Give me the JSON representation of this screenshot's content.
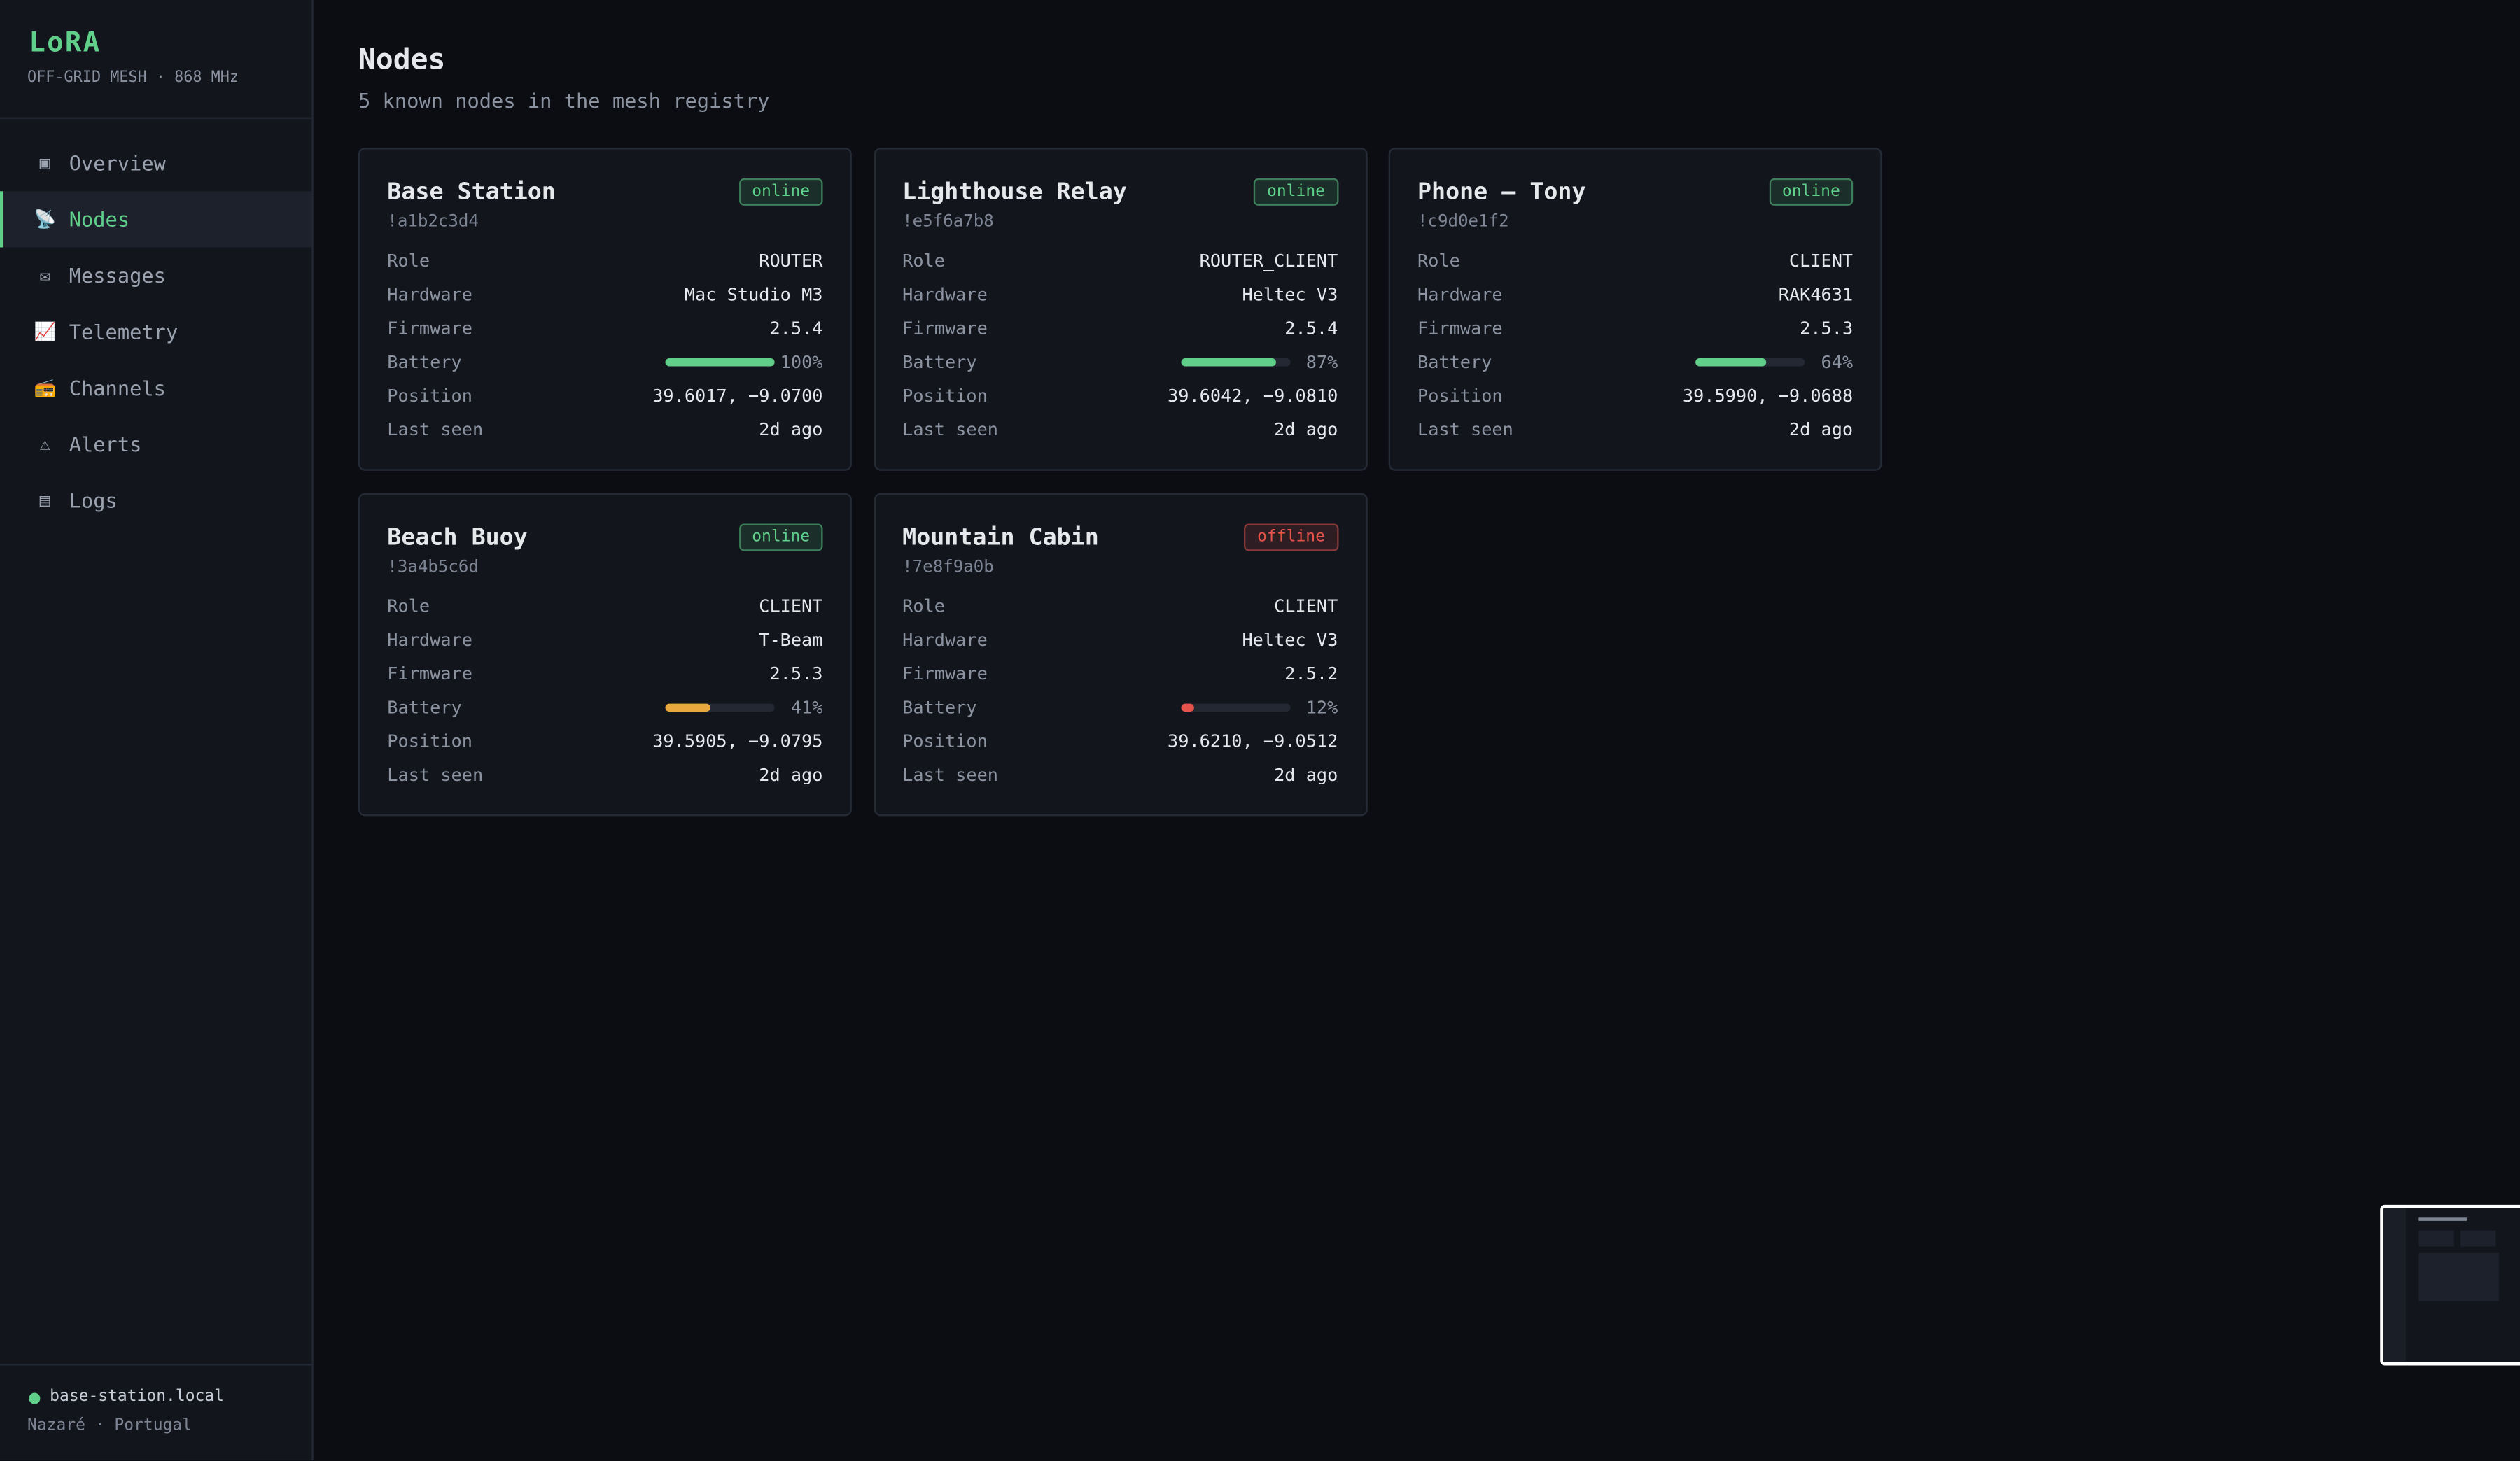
{
  "brand": {
    "title": "LoRA",
    "subtitle": "OFF-GRID MESH · 868 MHz"
  },
  "nav": [
    {
      "icon": "▣",
      "label": "Overview",
      "active": false
    },
    {
      "icon": "📡",
      "label": "Nodes",
      "active": true
    },
    {
      "icon": "✉",
      "label": "Messages",
      "active": false
    },
    {
      "icon": "📈",
      "label": "Telemetry",
      "active": false
    },
    {
      "icon": "📻",
      "label": "Channels",
      "active": false
    },
    {
      "icon": "⚠",
      "label": "Alerts",
      "active": false
    },
    {
      "icon": "▤",
      "label": "Logs",
      "active": false
    }
  ],
  "footer": {
    "host": "base-station.local",
    "location": "Nazaré · Portugal"
  },
  "header": {
    "title": "Nodes",
    "subtitle": "5 known nodes in the mesh registry"
  },
  "field_labels": [
    "Role",
    "Hardware",
    "Firmware",
    "Battery",
    "Position",
    "Last seen"
  ],
  "nodes": [
    {
      "name": "Base Station",
      "id": "!a1b2c3d4",
      "status": "online",
      "status_color": "#5fcf8a",
      "role": "ROUTER",
      "hardware": "Mac Studio M3",
      "firmware": "2.5.4",
      "battery": 100,
      "battery_label": "100%",
      "battery_color": "#5fcf8a",
      "position": "39.6017, −9.0700",
      "last_seen": "2d ago"
    },
    {
      "name": "Lighthouse Relay",
      "id": "!e5f6a7b8",
      "status": "online",
      "status_color": "#5fcf8a",
      "role": "ROUTER_CLIENT",
      "hardware": "Heltec V3",
      "firmware": "2.5.4",
      "battery": 87,
      "battery_label": "87%",
      "battery_color": "#5fcf8a",
      "position": "39.6042, −9.0810",
      "last_seen": "2d ago"
    },
    {
      "name": "Phone – Tony",
      "id": "!c9d0e1f2",
      "status": "online",
      "status_color": "#5fcf8a",
      "role": "CLIENT",
      "hardware": "RAK4631",
      "firmware": "2.5.3",
      "battery": 64,
      "battery_label": "64%",
      "battery_color": "#5fcf8a",
      "position": "39.5990, −9.0688",
      "last_seen": "2d ago"
    },
    {
      "name": "Beach Buoy",
      "id": "!3a4b5c6d",
      "status": "online",
      "status_color": "#5fcf8a",
      "role": "CLIENT",
      "hardware": "T-Beam",
      "firmware": "2.5.3",
      "battery": 41,
      "battery_label": "41%",
      "battery_color": "#e8a83e",
      "position": "39.5905, −9.0795",
      "last_seen": "2d ago"
    },
    {
      "name": "Mountain Cabin",
      "id": "!7e8f9a0b",
      "status": "offline",
      "status_color": "#e5534b",
      "role": "CLIENT",
      "hardware": "Heltec V3",
      "firmware": "2.5.2",
      "battery": 12,
      "battery_label": "12%",
      "battery_color": "#e5534b",
      "position": "39.6210, −9.0512",
      "last_seen": "2d ago"
    }
  ]
}
